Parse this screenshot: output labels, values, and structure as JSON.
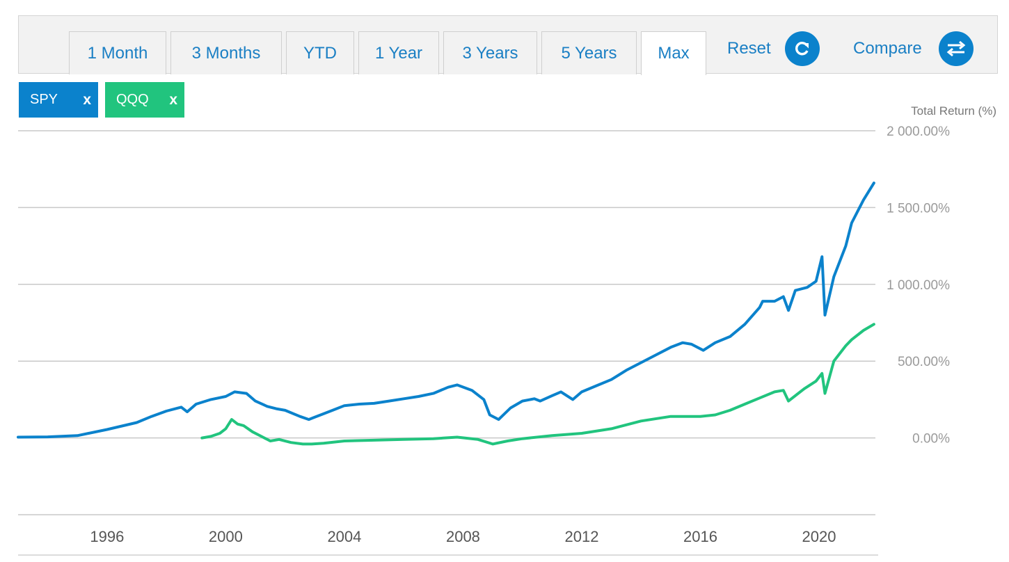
{
  "toolbar": {
    "tabs": [
      "1 Month",
      "3 Months",
      "YTD",
      "1 Year",
      "3 Years",
      "5 Years",
      "Max"
    ],
    "active_tab": "Max",
    "reset_label": "Reset",
    "compare_label": "Compare"
  },
  "chips": [
    {
      "label": "SPY",
      "remove": "x",
      "color": "#0b82cc"
    },
    {
      "label": "QQQ",
      "remove": "x",
      "color": "#21c47e"
    }
  ],
  "chart_data": {
    "type": "line",
    "ylabel": "Total Return (%)",
    "ylim": [
      -500,
      2000
    ],
    "xlim": [
      1993.0,
      2021.9
    ],
    "yticks": [
      2000,
      1500,
      1000,
      500,
      0
    ],
    "ytick_labels": [
      "2 000.00%",
      "1 500.00%",
      "1 000.00%",
      "500.00%",
      "0.00%"
    ],
    "xticks": [
      1996,
      2000,
      2004,
      2008,
      2012,
      2016,
      2020
    ],
    "xtick_labels": [
      "1996",
      "2000",
      "2004",
      "2008",
      "2012",
      "2016",
      "2020"
    ],
    "grid": true,
    "series": [
      {
        "name": "SPY",
        "color": "#0b82cc",
        "x": [
          1993.0,
          1994.0,
          1995.0,
          1996.0,
          1997.0,
          1997.5,
          1998.0,
          1998.5,
          1998.7,
          1999.0,
          1999.5,
          2000.0,
          2000.3,
          2000.7,
          2001.0,
          2001.4,
          2001.7,
          2002.0,
          2002.5,
          2002.8,
          2003.0,
          2003.2,
          2003.6,
          2004.0,
          2004.5,
          2005.0,
          2005.5,
          2006.0,
          2006.5,
          2007.0,
          2007.5,
          2007.8,
          2008.3,
          2008.7,
          2008.9,
          2009.2,
          2009.6,
          2010.0,
          2010.4,
          2010.6,
          2011.0,
          2011.3,
          2011.7,
          2012.0,
          2012.5,
          2013.0,
          2013.5,
          2014.0,
          2014.5,
          2015.0,
          2015.4,
          2015.7,
          2016.1,
          2016.5,
          2017.0,
          2017.5,
          2018.0,
          2018.1,
          2018.5,
          2018.8,
          2018.97,
          2019.2,
          2019.6,
          2019.9,
          2020.1,
          2020.2,
          2020.5,
          2020.9,
          2021.1,
          2021.5,
          2021.85
        ],
        "y": [
          5,
          7,
          15,
          55,
          100,
          140,
          175,
          200,
          170,
          220,
          250,
          270,
          300,
          290,
          240,
          205,
          190,
          180,
          140,
          120,
          135,
          150,
          180,
          210,
          220,
          225,
          240,
          255,
          270,
          290,
          330,
          345,
          310,
          250,
          150,
          120,
          195,
          240,
          255,
          240,
          275,
          300,
          250,
          300,
          340,
          380,
          440,
          490,
          540,
          590,
          620,
          610,
          570,
          620,
          660,
          740,
          850,
          890,
          890,
          920,
          830,
          960,
          980,
          1020,
          1180,
          800,
          1050,
          1250,
          1400,
          1550,
          1660
        ]
      },
      {
        "name": "QQQ",
        "color": "#21c47e",
        "x": [
          1999.2,
          1999.5,
          1999.8,
          2000.0,
          2000.2,
          2000.4,
          2000.6,
          2000.9,
          2001.2,
          2001.5,
          2001.8,
          2002.2,
          2002.6,
          2002.9,
          2003.3,
          2004.0,
          2005.0,
          2006.0,
          2007.0,
          2007.8,
          2008.5,
          2009.0,
          2009.5,
          2010.0,
          2011.0,
          2012.0,
          2013.0,
          2014.0,
          2015.0,
          2016.0,
          2016.5,
          2017.0,
          2017.5,
          2018.0,
          2018.5,
          2018.8,
          2018.97,
          2019.5,
          2019.9,
          2020.1,
          2020.2,
          2020.5,
          2020.9,
          2021.1,
          2021.5,
          2021.85
        ],
        "y": [
          0,
          10,
          30,
          60,
          120,
          90,
          80,
          40,
          10,
          -20,
          -10,
          -30,
          -40,
          -40,
          -35,
          -20,
          -15,
          -10,
          -5,
          5,
          -10,
          -40,
          -20,
          -5,
          15,
          30,
          60,
          110,
          140,
          140,
          150,
          180,
          220,
          260,
          300,
          310,
          240,
          320,
          370,
          420,
          290,
          500,
          600,
          640,
          700,
          740
        ]
      }
    ]
  }
}
